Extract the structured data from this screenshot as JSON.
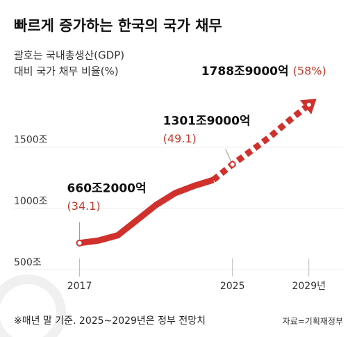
{
  "chart_data": {
    "type": "line",
    "title": "빠르게 증가하는 한국의 국가 채무",
    "subtitle": [
      "괄호는 국내총생산(GDP)",
      "대비 국가 채무 비율(%)"
    ],
    "x": [
      2017,
      2018,
      2019,
      2020,
      2021,
      2022,
      2023,
      2024,
      2025,
      2026,
      2027,
      2028,
      2029
    ],
    "series": [
      {
        "color": "#d0312d",
        "dashed": false,
        "values": [
          660.2,
          680.5,
          723.2,
          846.6,
          970.7,
          1067.4,
          1126.8,
          1175.2,
          null,
          null,
          null,
          null,
          null
        ]
      },
      {
        "color": "#d0312d",
        "dashed": true,
        "values": [
          null,
          null,
          null,
          null,
          null,
          null,
          null,
          1175.2,
          1301.9,
          1415,
          1532,
          1664,
          1788.9
        ]
      }
    ],
    "annotations": [
      {
        "x": 2017,
        "value": 660.2,
        "label": "660조2000억",
        "ratio": 34.1,
        "ratio_label": "(34.1)"
      },
      {
        "x": 2025,
        "value": 1301.9,
        "label": "1301조9000억",
        "ratio": 49.1,
        "ratio_label": "(49.1)"
      },
      {
        "x": 2029,
        "value": 1788.9,
        "label": "1788조9000억",
        "ratio": 58,
        "ratio_label": "(58%)"
      }
    ],
    "xlim": [
      2013.2,
      2030.5
    ],
    "xticks": [
      2017,
      2025,
      {
        "value": 2029,
        "label": "2029년"
      }
    ],
    "ylim": [
      375,
      1850
    ],
    "yticks": [
      {
        "value": 500,
        "label": "500조"
      },
      {
        "value": 1000,
        "label": "1000조"
      },
      {
        "value": 1500,
        "label": "1500조"
      }
    ],
    "footnote": "※매년 말 기준. 2025~2029년은 정부 전망치",
    "source": "자료=기획재정부"
  }
}
